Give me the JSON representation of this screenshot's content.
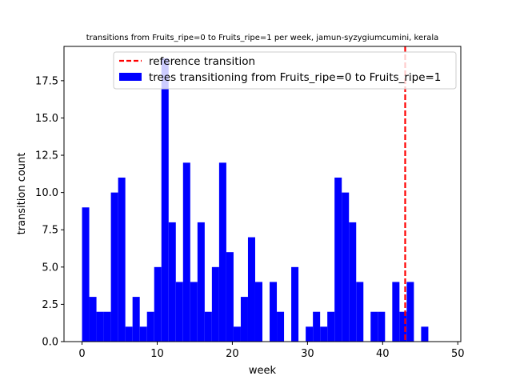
{
  "chart_data": {
    "type": "bar",
    "title": "transitions from Fruits_ripe=0 to Fruits_ripe=1 per week, jamun-syzygiumcumini, kerala",
    "xlabel": "week",
    "ylabel": "transition count",
    "xlim": [
      -2.4,
      50.4
    ],
    "ylim": [
      0,
      19.8
    ],
    "xticks": [
      0,
      10,
      20,
      30,
      40,
      50
    ],
    "xtick_labels": [
      "0",
      "10",
      "20",
      "30",
      "40",
      "50"
    ],
    "yticks": [
      0,
      2.5,
      5,
      7.5,
      10,
      12.5,
      15,
      17.5
    ],
    "ytick_labels": [
      "0.0",
      "2.5",
      "5.0",
      "7.5",
      "10.0",
      "12.5",
      "15.0",
      "17.5"
    ],
    "bin_width": 0.96,
    "bin_starts": [
      0,
      0.96,
      1.92,
      2.88,
      3.84,
      4.8,
      5.76,
      6.72,
      7.68,
      8.64,
      9.6,
      10.56,
      11.52,
      12.48,
      13.44,
      14.4,
      15.36,
      16.32,
      17.28,
      18.24,
      19.2,
      20.16,
      21.12,
      22.08,
      23.04,
      24,
      24.96,
      25.92,
      26.88,
      27.84,
      28.8,
      29.76,
      30.72,
      31.68,
      32.64,
      33.6,
      34.56,
      35.52,
      36.48,
      37.44,
      38.4,
      39.36,
      40.32,
      41.28,
      42.24,
      43.2,
      44.16,
      45.12,
      46.08,
      47.04
    ],
    "values": [
      9,
      3,
      2,
      2,
      10,
      11,
      1,
      3,
      1,
      2,
      5,
      19,
      8,
      4,
      12,
      4,
      8,
      2,
      5,
      12,
      6,
      1,
      3,
      7,
      4,
      0,
      4,
      2,
      0,
      5,
      0,
      1,
      2,
      1,
      2,
      11,
      10,
      8,
      4,
      0,
      2,
      2,
      0,
      4,
      2,
      4,
      0,
      1,
      0,
      0
    ],
    "bar_color": "#0000ff",
    "reference_line": {
      "x": 43,
      "color": "#ff0000",
      "style": "dashed",
      "label": "reference transition"
    },
    "series": [
      {
        "name": "trees transitioning from Fruits_ripe=0 to Fruits_ripe=1",
        "color": "#0000ff"
      }
    ],
    "legend": {
      "placement": "top-right",
      "entries": [
        {
          "label": "reference transition",
          "kind": "dashed-line",
          "color": "#ff0000"
        },
        {
          "label": "trees transitioning from Fruits_ripe=0 to Fruits_ripe=1",
          "kind": "patch",
          "color": "#0000ff"
        }
      ]
    },
    "grid": false
  }
}
